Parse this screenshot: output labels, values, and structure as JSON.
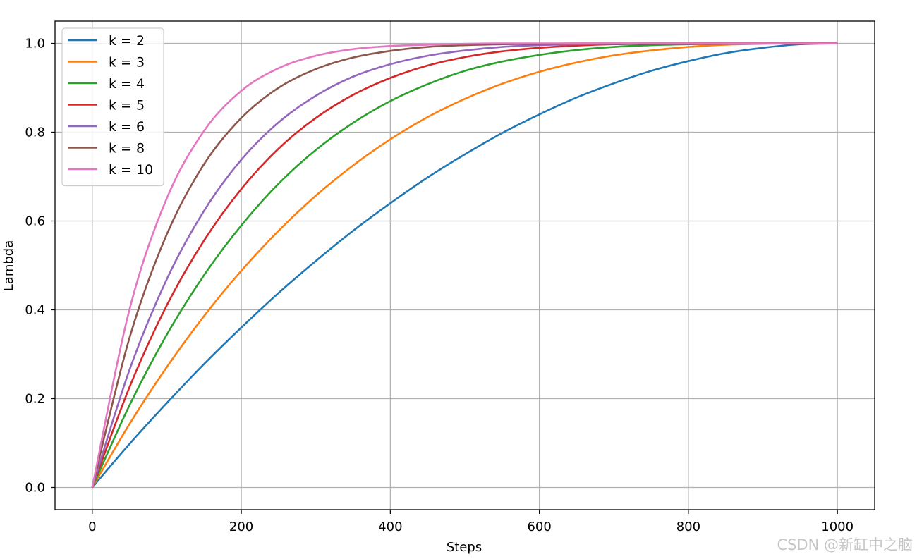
{
  "chart_data": {
    "type": "line",
    "xlabel": "Steps",
    "ylabel": "Lambda",
    "xlim": [
      -50,
      1050
    ],
    "ylim": [
      -0.05,
      1.05
    ],
    "xticks": [
      0,
      200,
      400,
      600,
      800,
      1000
    ],
    "xtick_labels": [
      "0",
      "200",
      "400",
      "600",
      "800",
      "1000"
    ],
    "yticks": [
      0.0,
      0.2,
      0.4,
      0.6,
      0.8,
      1.0
    ],
    "ytick_labels": [
      "0.0",
      "0.2",
      "0.4",
      "0.6",
      "0.8",
      "1.0"
    ],
    "grid": true,
    "legend_position": "top-left",
    "x": [
      0,
      50,
      100,
      150,
      200,
      250,
      300,
      350,
      400,
      450,
      500,
      550,
      600,
      650,
      700,
      750,
      800,
      850,
      900,
      950,
      1000
    ],
    "series": [
      {
        "name": "k = 2",
        "color": "#1f77b4",
        "values": [
          0.0,
          0.098,
          0.19,
          0.278,
          0.36,
          0.438,
          0.51,
          0.578,
          0.64,
          0.698,
          0.75,
          0.798,
          0.84,
          0.878,
          0.91,
          0.938,
          0.96,
          0.978,
          0.99,
          0.998,
          1.0
        ]
      },
      {
        "name": "k = 3",
        "color": "#ff7f0e",
        "values": [
          0.0,
          0.143,
          0.271,
          0.386,
          0.488,
          0.578,
          0.657,
          0.725,
          0.784,
          0.834,
          0.875,
          0.909,
          0.936,
          0.957,
          0.973,
          0.984,
          0.992,
          0.997,
          0.999,
          1.0,
          1.0
        ]
      },
      {
        "name": "k = 4",
        "color": "#2ca02c",
        "values": [
          0.0,
          0.185,
          0.344,
          0.478,
          0.59,
          0.684,
          0.76,
          0.821,
          0.87,
          0.908,
          0.938,
          0.959,
          0.974,
          0.985,
          0.992,
          0.996,
          0.998,
          0.999,
          1.0,
          1.0,
          1.0
        ]
      },
      {
        "name": "k = 5",
        "color": "#d62728",
        "values": [
          0.0,
          0.226,
          0.41,
          0.556,
          0.672,
          0.763,
          0.832,
          0.884,
          0.922,
          0.95,
          0.969,
          0.982,
          0.99,
          0.995,
          0.998,
          0.999,
          1.0,
          1.0,
          1.0,
          1.0,
          1.0
        ]
      },
      {
        "name": "k = 6",
        "color": "#9467bd",
        "values": [
          0.0,
          0.265,
          0.469,
          0.623,
          0.738,
          0.822,
          0.882,
          0.925,
          0.953,
          0.972,
          0.984,
          0.992,
          0.996,
          0.998,
          0.999,
          1.0,
          1.0,
          1.0,
          1.0,
          1.0,
          1.0
        ]
      },
      {
        "name": "k = 8",
        "color": "#8c564b",
        "values": [
          0.0,
          0.337,
          0.57,
          0.728,
          0.832,
          0.9,
          0.942,
          0.968,
          0.983,
          0.992,
          0.996,
          0.998,
          0.999,
          1.0,
          1.0,
          1.0,
          1.0,
          1.0,
          1.0,
          1.0,
          1.0
        ]
      },
      {
        "name": "k = 10",
        "color": "#e377c2",
        "values": [
          0.0,
          0.401,
          0.651,
          0.803,
          0.893,
          0.944,
          0.972,
          0.987,
          0.994,
          0.997,
          0.999,
          1.0,
          1.0,
          1.0,
          1.0,
          1.0,
          1.0,
          1.0,
          1.0,
          1.0,
          1.0
        ]
      }
    ]
  },
  "watermark": "CSDN @新缸中之脑"
}
